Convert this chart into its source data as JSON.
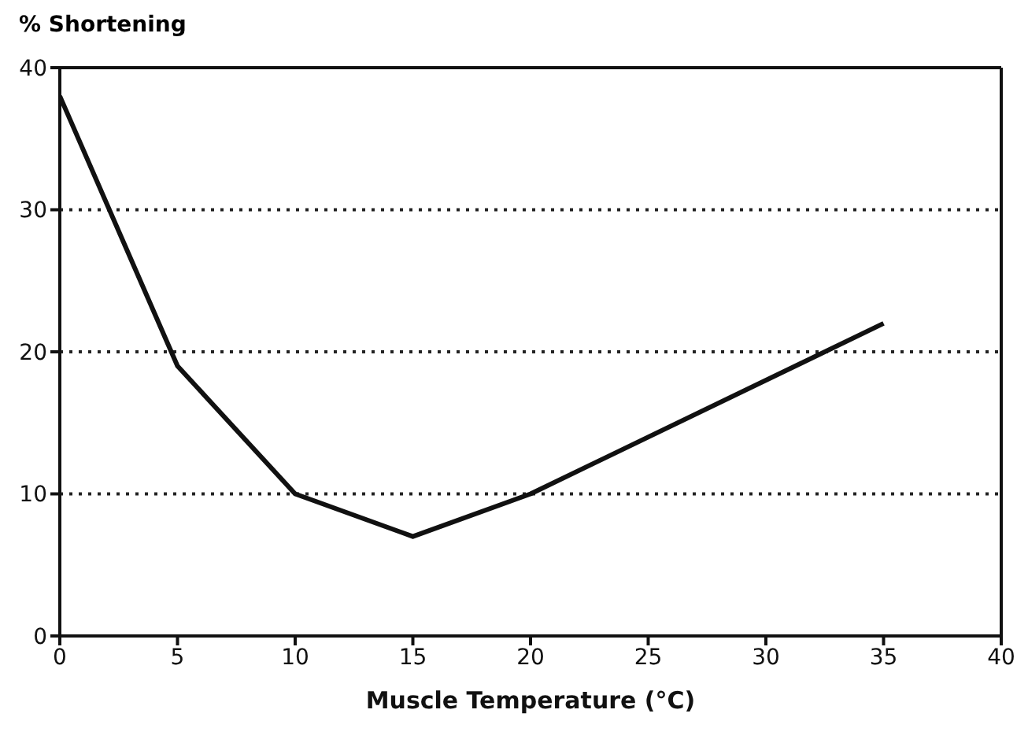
{
  "chart_data": {
    "type": "line",
    "ylabel": "% Shortening",
    "xlabel": "Muscle Temperature (°C)",
    "x": [
      0,
      5,
      10,
      15,
      20,
      35
    ],
    "series": [
      {
        "color": "#111111",
        "values": [
          38,
          19,
          10,
          7,
          10,
          22
        ]
      }
    ],
    "xlim": [
      0,
      40
    ],
    "xticks": [
      0,
      5,
      10,
      15,
      20,
      25,
      30,
      35,
      40
    ],
    "ylim": [
      0,
      40
    ],
    "yticks": [
      0,
      10,
      20,
      30,
      40
    ],
    "grid": "y",
    "marker": "none",
    "line_style": "solid"
  }
}
